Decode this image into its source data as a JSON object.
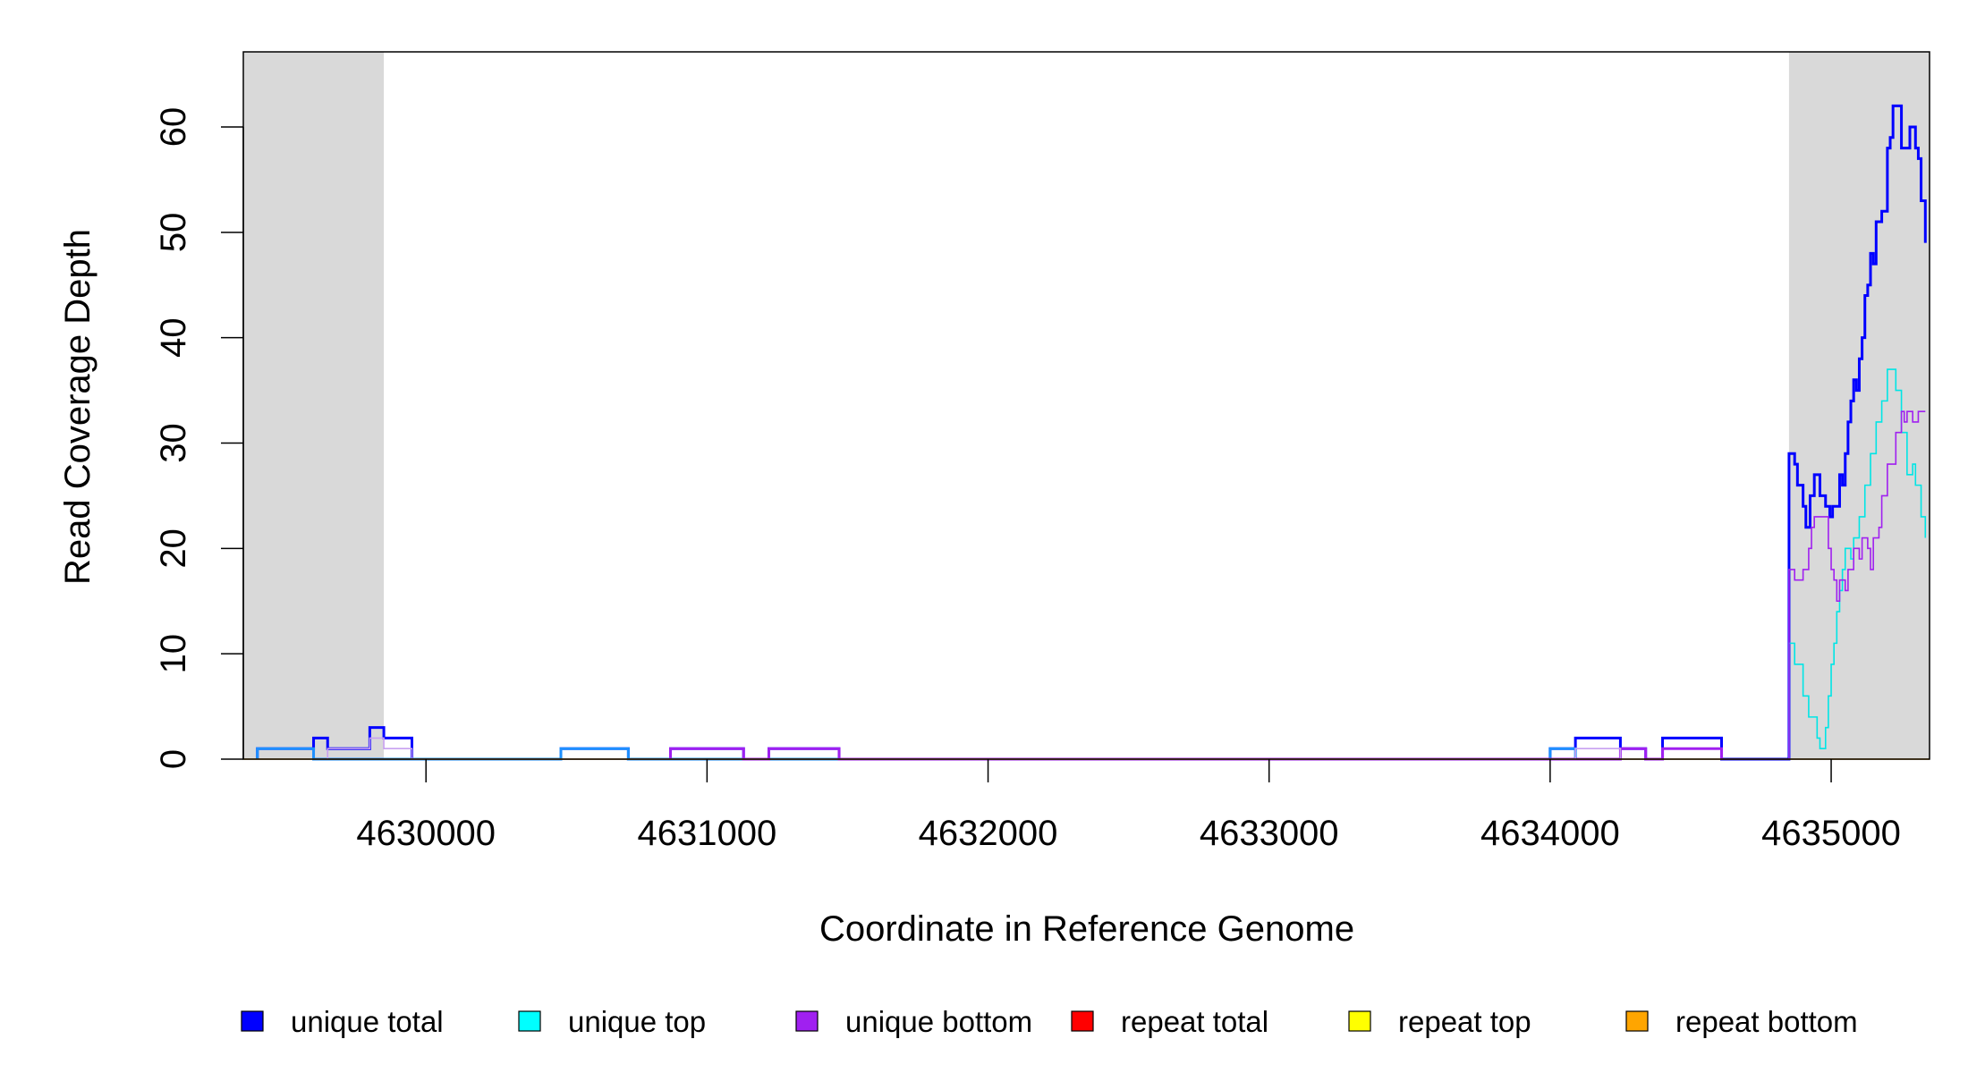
{
  "chart_data": {
    "type": "line",
    "xlabel": "Coordinate in Reference Genome",
    "ylabel": "Read Coverage Depth",
    "xlim": [
      4629350,
      4635350
    ],
    "ylim": [
      0,
      67
    ],
    "x_ticks": [
      4630000,
      4631000,
      4632000,
      4633000,
      4634000,
      4635000
    ],
    "y_ticks": [
      0,
      10,
      20,
      30,
      40,
      50,
      60
    ],
    "shaded_regions": [
      {
        "start": 4629350,
        "end": 4629850,
        "color": "#d9d9d9"
      },
      {
        "start": 4634850,
        "end": 4635350,
        "color": "#d9d9d9"
      }
    ],
    "legend": [
      {
        "label": "unique total",
        "color": "#0000ff"
      },
      {
        "label": "unique top",
        "color": "#00ffff"
      },
      {
        "label": "unique bottom",
        "color": "#a020f0"
      },
      {
        "label": "repeat total",
        "color": "#ff0000"
      },
      {
        "label": "repeat top",
        "color": "#ffff00"
      },
      {
        "label": "repeat bottom",
        "color": "#ffa500"
      }
    ],
    "series": [
      {
        "name": "unique total",
        "color": "#0000ff",
        "width": 3,
        "points": [
          [
            4629400,
            0
          ],
          [
            4629400,
            1
          ],
          [
            4629600,
            1
          ],
          [
            4629600,
            2
          ],
          [
            4629650,
            2
          ],
          [
            4629650,
            1
          ],
          [
            4629800,
            1
          ],
          [
            4629800,
            3
          ],
          [
            4629850,
            3
          ],
          [
            4629850,
            2
          ],
          [
            4629950,
            2
          ],
          [
            4629950,
            0
          ],
          [
            4630480,
            0
          ],
          [
            4630480,
            1
          ],
          [
            4630720,
            1
          ],
          [
            4630720,
            0
          ],
          [
            4630870,
            0
          ],
          [
            4630870,
            1
          ],
          [
            4631130,
            1
          ],
          [
            4631130,
            0
          ],
          [
            4631220,
            0
          ],
          [
            4631220,
            1
          ],
          [
            4631470,
            1
          ],
          [
            4631470,
            0
          ],
          [
            4634000,
            0
          ],
          [
            4634000,
            1
          ],
          [
            4634090,
            1
          ],
          [
            4634090,
            2
          ],
          [
            4634250,
            2
          ],
          [
            4634250,
            1
          ],
          [
            4634340,
            1
          ],
          [
            4634340,
            0
          ],
          [
            4634400,
            0
          ],
          [
            4634400,
            2
          ],
          [
            4634610,
            2
          ],
          [
            4634610,
            0
          ],
          [
            4634850,
            0
          ],
          [
            4634850,
            29
          ],
          [
            4634870,
            29
          ],
          [
            4634870,
            28
          ],
          [
            4634880,
            28
          ],
          [
            4634880,
            26
          ],
          [
            4634900,
            26
          ],
          [
            4634900,
            24
          ],
          [
            4634910,
            24
          ],
          [
            4634910,
            22
          ],
          [
            4634925,
            22
          ],
          [
            4634925,
            25
          ],
          [
            4634940,
            25
          ],
          [
            4634940,
            27
          ],
          [
            4634960,
            27
          ],
          [
            4634960,
            25
          ],
          [
            4634980,
            25
          ],
          [
            4634980,
            24
          ],
          [
            4634995,
            24
          ],
          [
            4634995,
            23
          ],
          [
            4635005,
            23
          ],
          [
            4635005,
            24
          ],
          [
            4635030,
            24
          ],
          [
            4635030,
            27
          ],
          [
            4635040,
            27
          ],
          [
            4635040,
            26
          ],
          [
            4635050,
            26
          ],
          [
            4635050,
            29
          ],
          [
            4635060,
            29
          ],
          [
            4635060,
            32
          ],
          [
            4635070,
            32
          ],
          [
            4635070,
            34
          ],
          [
            4635080,
            34
          ],
          [
            4635080,
            36
          ],
          [
            4635090,
            36
          ],
          [
            4635090,
            35
          ],
          [
            4635100,
            35
          ],
          [
            4635100,
            38
          ],
          [
            4635110,
            38
          ],
          [
            4635110,
            40
          ],
          [
            4635120,
            40
          ],
          [
            4635120,
            44
          ],
          [
            4635130,
            44
          ],
          [
            4635130,
            45
          ],
          [
            4635140,
            45
          ],
          [
            4635140,
            48
          ],
          [
            4635150,
            48
          ],
          [
            4635150,
            47
          ],
          [
            4635160,
            47
          ],
          [
            4635160,
            51
          ],
          [
            4635180,
            51
          ],
          [
            4635180,
            52
          ],
          [
            4635200,
            52
          ],
          [
            4635200,
            58
          ],
          [
            4635210,
            58
          ],
          [
            4635210,
            59
          ],
          [
            4635220,
            59
          ],
          [
            4635220,
            62
          ],
          [
            4635250,
            62
          ],
          [
            4635250,
            58
          ],
          [
            4635280,
            58
          ],
          [
            4635280,
            60
          ],
          [
            4635300,
            60
          ],
          [
            4635300,
            58
          ],
          [
            4635310,
            58
          ],
          [
            4635310,
            57
          ],
          [
            4635320,
            57
          ],
          [
            4635320,
            53
          ],
          [
            4635335,
            53
          ],
          [
            4635335,
            49
          ]
        ]
      },
      {
        "name": "unique top",
        "color": "#1e90ff",
        "width": 3,
        "points": [
          [
            4629400,
            0
          ],
          [
            4629400,
            1
          ],
          [
            4629600,
            1
          ],
          [
            4629600,
            0
          ],
          [
            4630480,
            0
          ],
          [
            4630480,
            1
          ],
          [
            4630720,
            1
          ],
          [
            4630720,
            0
          ],
          [
            4634000,
            0
          ],
          [
            4634000,
            1
          ],
          [
            4634090,
            1
          ],
          [
            4634090,
            0
          ]
        ]
      },
      {
        "name": "unique top",
        "color": "#00e5e5",
        "width": 1.6,
        "points": [
          [
            4634850,
            0
          ],
          [
            4634850,
            11
          ],
          [
            4634870,
            11
          ],
          [
            4634870,
            9
          ],
          [
            4634900,
            9
          ],
          [
            4634900,
            6
          ],
          [
            4634920,
            6
          ],
          [
            4634920,
            4
          ],
          [
            4634950,
            4
          ],
          [
            4634950,
            2
          ],
          [
            4634960,
            2
          ],
          [
            4634960,
            1
          ],
          [
            4634980,
            1
          ],
          [
            4634980,
            3
          ],
          [
            4634990,
            3
          ],
          [
            4634990,
            6
          ],
          [
            4635000,
            6
          ],
          [
            4635000,
            9
          ],
          [
            4635010,
            9
          ],
          [
            4635010,
            11
          ],
          [
            4635020,
            11
          ],
          [
            4635020,
            14
          ],
          [
            4635030,
            14
          ],
          [
            4635030,
            16
          ],
          [
            4635040,
            16
          ],
          [
            4635040,
            18
          ],
          [
            4635050,
            18
          ],
          [
            4635050,
            20
          ],
          [
            4635070,
            20
          ],
          [
            4635070,
            19
          ],
          [
            4635080,
            19
          ],
          [
            4635080,
            21
          ],
          [
            4635100,
            21
          ],
          [
            4635100,
            23
          ],
          [
            4635120,
            23
          ],
          [
            4635120,
            26
          ],
          [
            4635140,
            26
          ],
          [
            4635140,
            29
          ],
          [
            4635160,
            29
          ],
          [
            4635160,
            32
          ],
          [
            4635180,
            32
          ],
          [
            4635180,
            34
          ],
          [
            4635200,
            34
          ],
          [
            4635200,
            37
          ],
          [
            4635230,
            37
          ],
          [
            4635230,
            35
          ],
          [
            4635250,
            35
          ],
          [
            4635250,
            31
          ],
          [
            4635270,
            31
          ],
          [
            4635270,
            27
          ],
          [
            4635290,
            27
          ],
          [
            4635290,
            28
          ],
          [
            4635300,
            28
          ],
          [
            4635300,
            26
          ],
          [
            4635320,
            26
          ],
          [
            4635320,
            23
          ],
          [
            4635335,
            23
          ],
          [
            4635335,
            21
          ]
        ]
      },
      {
        "name": "unique bottom",
        "color": "#a020f0",
        "width": 1.6,
        "points": [
          [
            4634850,
            0
          ],
          [
            4634850,
            18
          ],
          [
            4634870,
            18
          ],
          [
            4634870,
            17
          ],
          [
            4634900,
            17
          ],
          [
            4634900,
            18
          ],
          [
            4634920,
            18
          ],
          [
            4634920,
            20
          ],
          [
            4634930,
            20
          ],
          [
            4634930,
            22
          ],
          [
            4634940,
            22
          ],
          [
            4634940,
            23
          ],
          [
            4634990,
            23
          ],
          [
            4634990,
            20
          ],
          [
            4635000,
            20
          ],
          [
            4635000,
            18
          ],
          [
            4635010,
            18
          ],
          [
            4635010,
            17
          ],
          [
            4635020,
            17
          ],
          [
            4635020,
            15
          ],
          [
            4635030,
            15
          ],
          [
            4635030,
            17
          ],
          [
            4635050,
            17
          ],
          [
            4635050,
            16
          ],
          [
            4635060,
            16
          ],
          [
            4635060,
            18
          ],
          [
            4635080,
            18
          ],
          [
            4635080,
            20
          ],
          [
            4635100,
            20
          ],
          [
            4635100,
            19
          ],
          [
            4635110,
            19
          ],
          [
            4635110,
            21
          ],
          [
            4635130,
            21
          ],
          [
            4635130,
            20
          ],
          [
            4635140,
            20
          ],
          [
            4635140,
            18
          ],
          [
            4635150,
            18
          ],
          [
            4635150,
            21
          ],
          [
            4635170,
            21
          ],
          [
            4635170,
            22
          ],
          [
            4635180,
            22
          ],
          [
            4635180,
            25
          ],
          [
            4635200,
            25
          ],
          [
            4635200,
            28
          ],
          [
            4635230,
            28
          ],
          [
            4635230,
            31
          ],
          [
            4635250,
            31
          ],
          [
            4635250,
            33
          ],
          [
            4635260,
            33
          ],
          [
            4635260,
            32
          ],
          [
            4635270,
            32
          ],
          [
            4635270,
            33
          ],
          [
            4635290,
            33
          ],
          [
            4635290,
            32
          ],
          [
            4635310,
            32
          ],
          [
            4635310,
            33
          ],
          [
            4635335,
            33
          ]
        ]
      },
      {
        "name": "unique bottom",
        "color": "#a020f0",
        "width": 3,
        "points": [
          [
            4630870,
            0
          ],
          [
            4630870,
            1
          ],
          [
            4631130,
            1
          ],
          [
            4631130,
            0
          ],
          [
            4631220,
            0
          ],
          [
            4631220,
            1
          ],
          [
            4631470,
            1
          ],
          [
            4631470,
            0
          ],
          [
            4634250,
            0
          ],
          [
            4634250,
            1
          ],
          [
            4634340,
            1
          ],
          [
            4634340,
            0
          ],
          [
            4634400,
            0
          ],
          [
            4634400,
            1
          ],
          [
            4634610,
            1
          ],
          [
            4634610,
            0
          ]
        ]
      },
      {
        "name": "unique bottom",
        "color": "#c8a0f0",
        "width": 1.6,
        "points": [
          [
            4629650,
            0
          ],
          [
            4629650,
            1
          ],
          [
            4629800,
            1
          ],
          [
            4629800,
            2
          ],
          [
            4629850,
            2
          ],
          [
            4629850,
            1
          ],
          [
            4629950,
            1
          ],
          [
            4629950,
            0
          ],
          [
            4634090,
            0
          ],
          [
            4634090,
            1
          ],
          [
            4634250,
            1
          ],
          [
            4634250,
            0
          ]
        ]
      },
      {
        "name": "repeat bottom",
        "color": "#ffa500",
        "width": 1.6,
        "points": [
          [
            4629350,
            0
          ],
          [
            4635350,
            0
          ]
        ]
      }
    ]
  }
}
